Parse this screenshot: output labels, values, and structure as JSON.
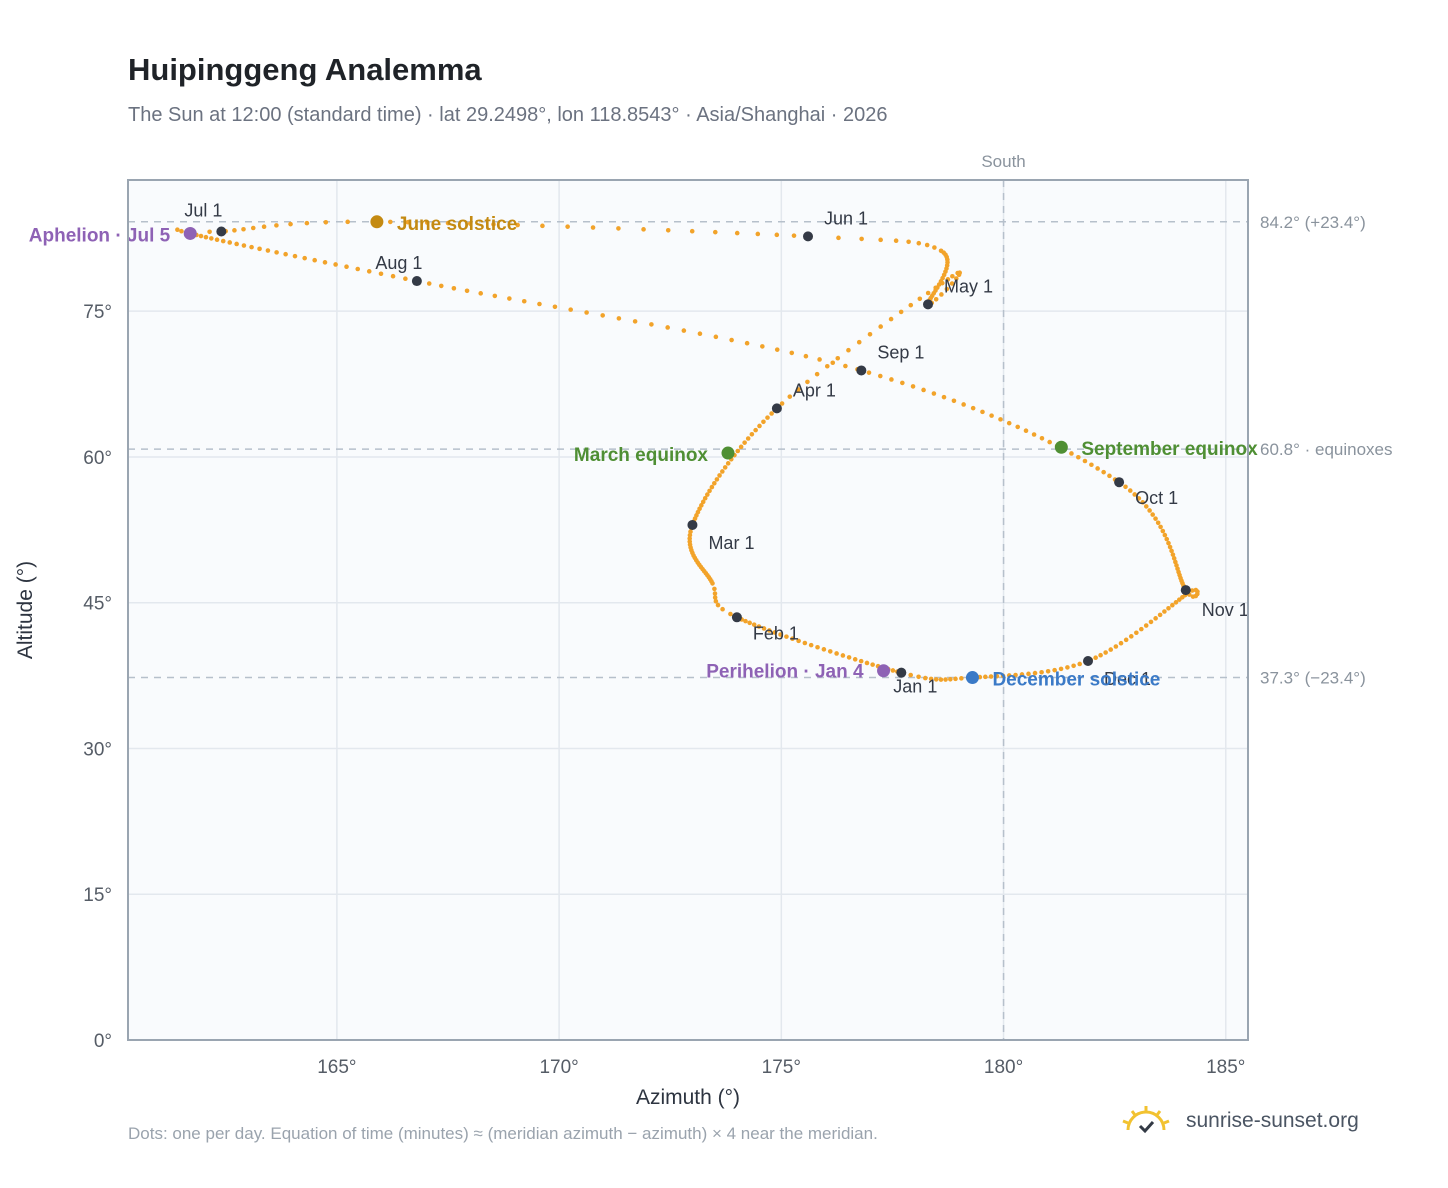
{
  "header": {
    "title": "Huipinggeng Analemma",
    "subtitle": "The Sun at 12:00 (standard time) · lat 29.2498°, lon 118.8543° · Asia/Shanghai · 2026"
  },
  "footer": {
    "note": "Dots: one per day. Equation of time (minutes) ≈ (meridian azimuth − azimuth) × 4 near the meridian.",
    "brand": "sunrise-sunset.org"
  },
  "chart_data": {
    "type": "scatter",
    "xlabel": "Azimuth (°)",
    "ylabel": "Altitude (°)",
    "xlim": [
      160.3,
      185.5
    ],
    "ylim": [
      0,
      88.5
    ],
    "xticks": [
      {
        "v": 165,
        "label": "165°"
      },
      {
        "v": 170,
        "label": "170°"
      },
      {
        "v": 175,
        "label": "175°"
      },
      {
        "v": 180,
        "label": "180°"
      },
      {
        "v": 185,
        "label": "185°"
      }
    ],
    "yticks": [
      {
        "v": 0,
        "label": "0°"
      },
      {
        "v": 15,
        "label": "15°"
      },
      {
        "v": 30,
        "label": "30°"
      },
      {
        "v": 45,
        "label": "45°"
      },
      {
        "v": 60,
        "label": "60°"
      },
      {
        "v": 75,
        "label": "75°"
      }
    ],
    "grid": true,
    "reference_lines": [
      {
        "axis": "y",
        "value": 84.2,
        "label": "84.2° (+23.4°)"
      },
      {
        "axis": "y",
        "value": 60.8,
        "label": "60.8° · equinoxes"
      },
      {
        "axis": "y",
        "value": 37.3,
        "label": "37.3° (−23.4°)"
      },
      {
        "axis": "x",
        "value": 180,
        "label": "South"
      }
    ],
    "month_markers": [
      {
        "label": "Jan 1",
        "az": 177.7,
        "alt": 37.8
      },
      {
        "label": "Feb 1",
        "az": 174.0,
        "alt": 43.5
      },
      {
        "label": "Mar 1",
        "az": 173.0,
        "alt": 53.0
      },
      {
        "label": "Apr 1",
        "az": 174.9,
        "alt": 65.0
      },
      {
        "label": "May 1",
        "az": 178.3,
        "alt": 75.7
      },
      {
        "label": "Jun 1",
        "az": 175.6,
        "alt": 82.7
      },
      {
        "label": "Jul 1",
        "az": 162.4,
        "alt": 83.2
      },
      {
        "label": "Aug 1",
        "az": 166.8,
        "alt": 78.1
      },
      {
        "label": "Sep 1",
        "az": 176.8,
        "alt": 68.9
      },
      {
        "label": "Oct 1",
        "az": 182.6,
        "alt": 57.4
      },
      {
        "label": "Nov 1",
        "az": 184.1,
        "alt": 46.3
      },
      {
        "label": "Dec 1",
        "az": 181.9,
        "alt": 39.0
      }
    ],
    "events": [
      {
        "label": "June solstice",
        "az": 165.9,
        "alt": 84.2,
        "color": "#c48a12"
      },
      {
        "label": "December solstice",
        "az": 179.3,
        "alt": 37.3,
        "color": "#3b7ac7"
      },
      {
        "label": "March equinox",
        "az": 173.8,
        "alt": 60.4,
        "color": "#4f8f34"
      },
      {
        "label": "September equinox",
        "az": 181.3,
        "alt": 61.0,
        "color": "#4f8f34"
      },
      {
        "label": "Aphelion · Jul 5",
        "az": 161.7,
        "alt": 83.0,
        "color": "#8e62b5"
      },
      {
        "label": "Perihelion · Jan 4",
        "az": 177.3,
        "alt": 38.0,
        "color": "#8e62b5"
      }
    ],
    "path_color": "#f2a32a"
  }
}
